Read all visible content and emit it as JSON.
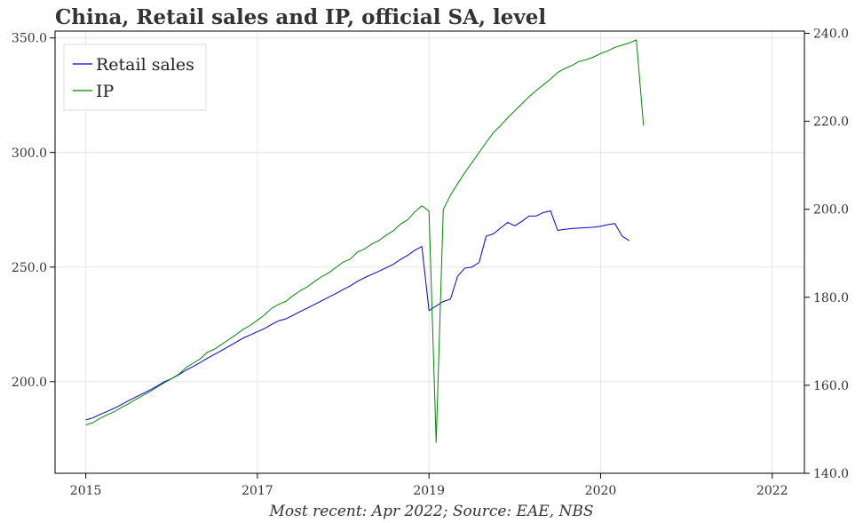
{
  "title": "China, Retail sales and IP, official SA, level",
  "source_note": "Most recent: Apr 2022; Source: EAE, NBS",
  "chart_data": {
    "type": "line",
    "x_axis": {
      "ticks": [
        2015,
        2017,
        2019,
        2020,
        2022
      ],
      "tick_labels": [
        "2015",
        "2017",
        "2019",
        "2020",
        "2022"
      ],
      "tick_index": [
        0,
        24,
        48,
        72,
        96
      ],
      "range_index": [
        -4.3,
        100.5
      ]
    },
    "y_left": {
      "range": [
        160,
        353
      ],
      "ticks": [
        200,
        250,
        300,
        350
      ],
      "tick_labels": [
        "200.0",
        "250.0",
        "300.0",
        "350.0"
      ]
    },
    "y_right": {
      "range": [
        140,
        240.5
      ],
      "ticks": [
        140,
        160,
        180,
        200,
        220,
        240
      ],
      "tick_labels": [
        "140.0",
        "160.0",
        "180.0",
        "200.0",
        "220.0",
        "240.0"
      ]
    },
    "grid": true,
    "legend": {
      "position": "top-left"
    },
    "series": [
      {
        "name": "Retail sales",
        "axis": "left",
        "color": "#0000cc",
        "start_index": 0,
        "values": [
          183.3,
          184.2,
          185.7,
          187.0,
          188.4,
          190.0,
          191.7,
          193.3,
          194.8,
          196.4,
          198.1,
          200.0,
          201.3,
          203.0,
          205.0,
          206.6,
          208.3,
          210.2,
          211.9,
          213.6,
          215.4,
          217.2,
          219.0,
          220.4,
          221.8,
          223.2,
          225.0,
          226.6,
          227.4,
          229.0,
          230.6,
          232.1,
          233.7,
          235.3,
          236.9,
          238.5,
          240.2,
          241.8,
          243.8,
          245.4,
          246.8,
          248.2,
          249.7,
          251.2,
          253.3,
          255.1,
          257.3,
          259.0,
          231.0,
          233.0,
          235.0,
          236.0,
          246.0,
          249.5,
          250.0,
          252.0,
          263.5,
          264.5,
          267.0,
          269.5,
          268.0,
          270.0,
          272.3,
          272.3,
          273.8,
          274.5,
          266.0,
          266.5,
          266.8,
          267.0,
          267.2,
          267.4,
          267.8,
          268.5,
          269.0,
          263.5,
          261.5
        ]
      },
      {
        "name": "IP",
        "axis": "right",
        "color": "#008800",
        "start_index": 0,
        "values": [
          151.0,
          151.5,
          152.5,
          153.3,
          154.0,
          155.0,
          155.8,
          156.8,
          157.7,
          158.6,
          159.6,
          160.6,
          161.5,
          162.5,
          164.0,
          165.0,
          166.0,
          167.5,
          168.2,
          169.3,
          170.4,
          171.5,
          172.7,
          173.6,
          174.8,
          176.0,
          177.5,
          178.4,
          179.1,
          180.4,
          181.5,
          182.4,
          183.6,
          184.7,
          185.6,
          186.8,
          188.0,
          188.7,
          190.3,
          191.0,
          192.1,
          192.9,
          194.1,
          195.1,
          196.6,
          197.6,
          199.4,
          200.8,
          199.6,
          147.0,
          200.0,
          203.2,
          205.8,
          208.3,
          210.6,
          212.9,
          215.2,
          217.4,
          219.0,
          220.8,
          222.4,
          224.0,
          225.6,
          227.0,
          228.3,
          229.6,
          231.1,
          232.0,
          232.7,
          233.6,
          234.0,
          234.6,
          235.4,
          236.0,
          236.8,
          237.3,
          237.8,
          238.5,
          219.0
        ]
      }
    ]
  }
}
